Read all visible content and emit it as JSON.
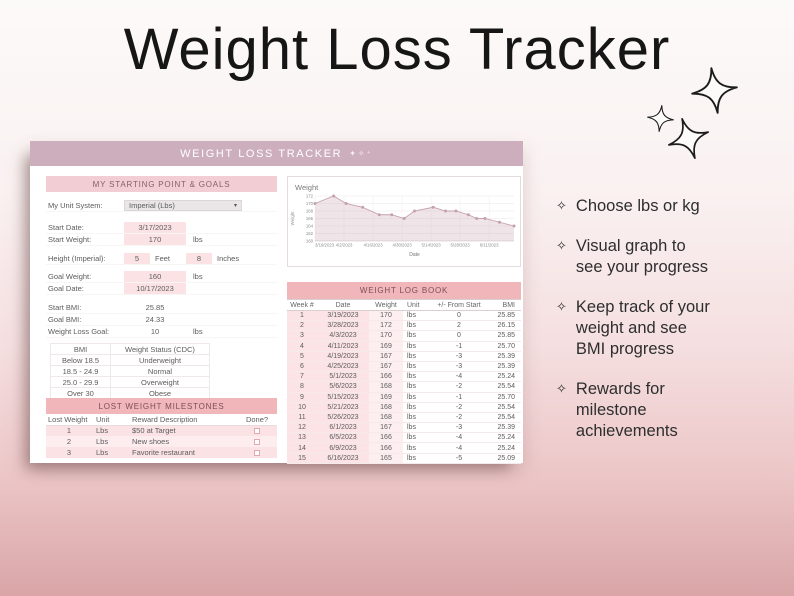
{
  "page_title": "Weight Loss Tracker",
  "features": {
    "bullet": "✧",
    "items": [
      "Choose lbs or kg",
      "Visual graph to see your progress",
      "Keep track of your weight and see BMI progress",
      "Rewards for milestone achievements"
    ]
  },
  "sheet": {
    "title": "WEIGHT LOSS TRACKER",
    "title_sparkles": "✦✧⁺",
    "goals": {
      "heading": "MY STARTING POINT & GOALS",
      "unit_label": "My Unit System:",
      "unit_value": "Imperial (Lbs)",
      "start_date_label": "Start Date:",
      "start_date": "3/17/2023",
      "start_weight_label": "Start Weight:",
      "start_weight": "170",
      "start_weight_unit": "lbs",
      "height_label": "Height (Imperial):",
      "height_feet": "5",
      "height_feet_label": "Feet",
      "height_inches": "8",
      "height_inches_label": "Inches",
      "goal_weight_label": "Goal Weight:",
      "goal_weight": "160",
      "goal_weight_unit": "lbs",
      "goal_date_label": "Goal Date:",
      "goal_date": "10/17/2023",
      "start_bmi_label": "Start BMI:",
      "start_bmi": "25.85",
      "goal_bmi_label": "Goal BMI:",
      "goal_bmi": "24.33",
      "loss_goal_label": "Weight Loss Goal:",
      "loss_goal": "10",
      "loss_goal_unit": "lbs"
    },
    "bmi_reference": {
      "headers": [
        "BMI",
        "Weight Status (CDC)"
      ],
      "rows": [
        [
          "Below 18.5",
          "Underweight"
        ],
        [
          "18.5 - 24.9",
          "Normal"
        ],
        [
          "25.0 - 29.9",
          "Overweight"
        ],
        [
          "Over 30",
          "Obese"
        ]
      ]
    },
    "milestones": {
      "heading": "LOST WEIGHT MILESTONES",
      "headers": [
        "Lost Weight",
        "Unit",
        "Reward Description",
        "Done?"
      ],
      "rows": [
        [
          "1",
          "Lbs",
          "$50 at Target"
        ],
        [
          "2",
          "Lbs",
          "New shoes"
        ],
        [
          "3",
          "Lbs",
          "Favorite restaurant"
        ]
      ]
    },
    "log_book": {
      "heading": "WEIGHT LOG BOOK",
      "headers": [
        "Week #",
        "Date",
        "Weight",
        "Unit",
        "+/- From Start",
        "BMI"
      ],
      "rows": [
        [
          "1",
          "3/19/2023",
          "170",
          "lbs",
          "0",
          "25.85"
        ],
        [
          "2",
          "3/28/2023",
          "172",
          "lbs",
          "2",
          "26.15"
        ],
        [
          "3",
          "4/3/2023",
          "170",
          "lbs",
          "0",
          "25.85"
        ],
        [
          "4",
          "4/11/2023",
          "169",
          "lbs",
          "-1",
          "25.70"
        ],
        [
          "5",
          "4/19/2023",
          "167",
          "lbs",
          "-3",
          "25.39"
        ],
        [
          "6",
          "4/25/2023",
          "167",
          "lbs",
          "-3",
          "25.39"
        ],
        [
          "7",
          "5/1/2023",
          "166",
          "lbs",
          "-4",
          "25.24"
        ],
        [
          "8",
          "5/6/2023",
          "168",
          "lbs",
          "-2",
          "25.54"
        ],
        [
          "9",
          "5/15/2023",
          "169",
          "lbs",
          "-1",
          "25.70"
        ],
        [
          "10",
          "5/21/2023",
          "168",
          "lbs",
          "-2",
          "25.54"
        ],
        [
          "11",
          "5/26/2023",
          "168",
          "lbs",
          "-2",
          "25.54"
        ],
        [
          "12",
          "6/1/2023",
          "167",
          "lbs",
          "-3",
          "25.39"
        ],
        [
          "13",
          "6/5/2023",
          "166",
          "lbs",
          "-4",
          "25.24"
        ],
        [
          "14",
          "6/9/2023",
          "166",
          "lbs",
          "-4",
          "25.24"
        ],
        [
          "15",
          "6/16/2023",
          "165",
          "lbs",
          "-5",
          "25.09"
        ]
      ]
    }
  },
  "chart_data": {
    "type": "area",
    "title": "Weight",
    "xlabel": "Date",
    "ylabel": "Weight",
    "ylim": [
      160,
      172
    ],
    "y_ticks": [
      160,
      162,
      164,
      166,
      168,
      170,
      172
    ],
    "x_tick_labels": [
      "3/19/2023",
      "4/2/2023",
      "4/16/2023",
      "4/30/2023",
      "5/14/2023",
      "5/28/2023",
      "6/11/2023"
    ],
    "x": [
      "3/19/2023",
      "3/28/2023",
      "4/3/2023",
      "4/11/2023",
      "4/19/2023",
      "4/25/2023",
      "5/1/2023",
      "5/6/2023",
      "5/15/2023",
      "5/21/2023",
      "5/26/2023",
      "6/1/2023",
      "6/5/2023",
      "6/9/2023",
      "6/16/2023",
      "6/23/2023"
    ],
    "values": [
      170,
      172,
      170,
      169,
      167,
      167,
      166,
      168,
      169,
      168,
      168,
      167,
      166,
      166,
      165,
      164
    ],
    "grid": true,
    "legend": "none",
    "line_color": "#c5a0ae",
    "fill_color": "rgba(197,160,174,0.28)"
  },
  "colors": {
    "header_bar": "#cdaebc",
    "band_light": "#f2ced4",
    "band_salmon": "#f1b6ba",
    "cell_pink": "#fbe2e5",
    "background_bottom": "#d9a5a7"
  }
}
